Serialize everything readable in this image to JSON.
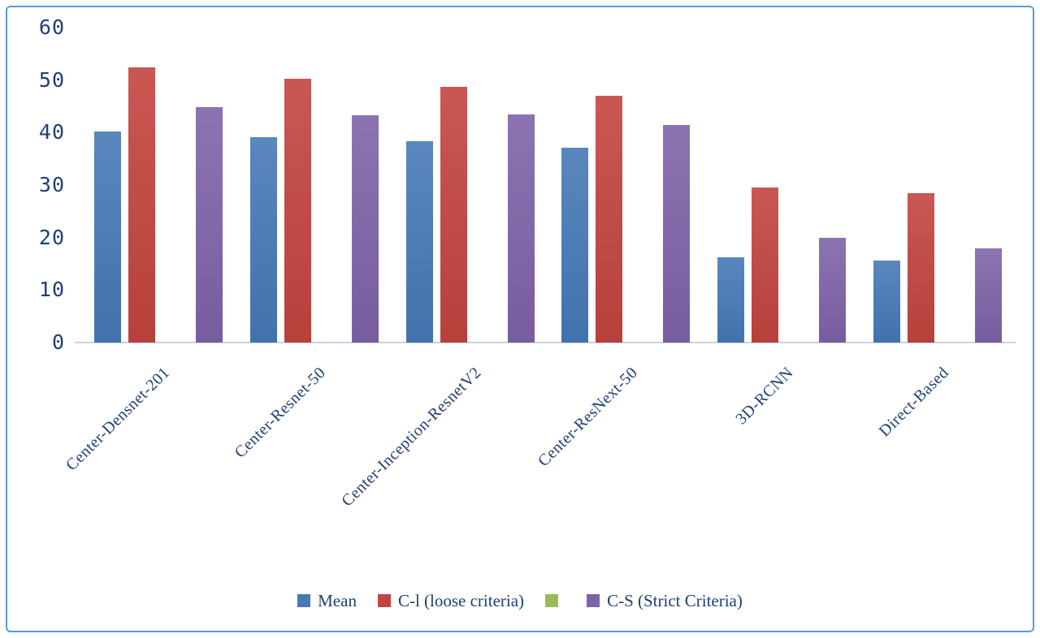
{
  "figure": {
    "border_color": "#5B9BD5",
    "background": "#FFFFFF",
    "axis_line_color": "#C9D2E0",
    "text_color": "#1F3F73"
  },
  "chart_data": {
    "type": "bar",
    "title": "",
    "xlabel": "",
    "ylabel": "",
    "categories": [
      "Center-Densnet-201",
      "Center-Resnet-50",
      "Center-Inception-ResnetV2",
      "Center-ResNext-50",
      "3D-RCNN",
      "Direct-Based"
    ],
    "series": [
      {
        "name": "Mean",
        "color": "#4679B6",
        "values": [
          40.2,
          39.1,
          38.3,
          37.1,
          16.3,
          15.6
        ]
      },
      {
        "name": "C-l (loose criteria)",
        "color": "#C3443F",
        "values": [
          52.4,
          50.2,
          48.7,
          47.0,
          29.6,
          28.5
        ]
      },
      {
        "name": "",
        "color": "#9BBB59",
        "values": [
          0,
          0,
          0,
          0,
          0,
          0
        ]
      },
      {
        "name": "C-S (Strict Criteria)",
        "color": "#7F63A8",
        "values": [
          44.9,
          43.3,
          43.4,
          41.5,
          20.0,
          17.9
        ]
      }
    ],
    "ylim": [
      0,
      60
    ],
    "yticks": [
      0,
      10,
      20,
      30,
      40,
      50,
      60
    ],
    "grid": false,
    "legend_position": "bottom"
  }
}
